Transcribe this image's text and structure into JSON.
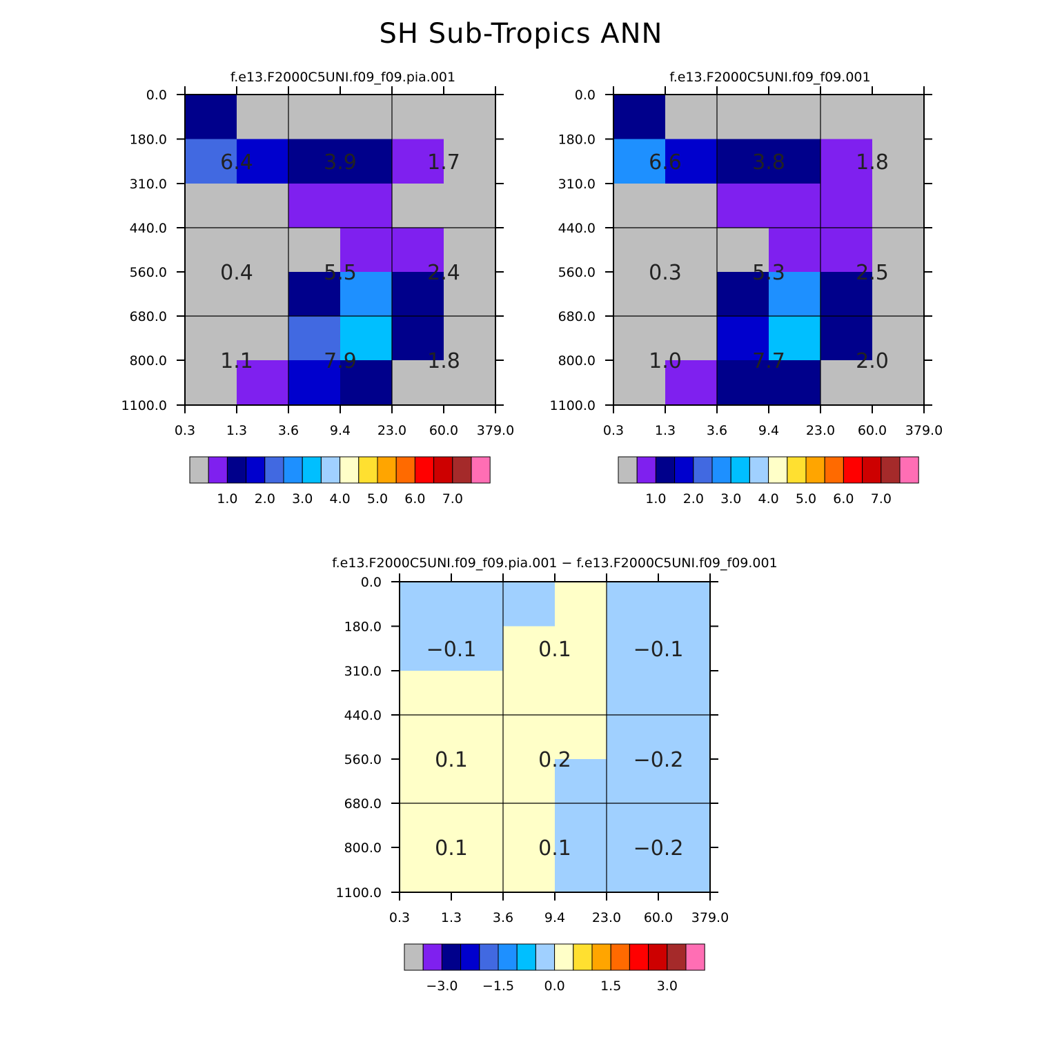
{
  "title": "SH Sub-Tropics ANN",
  "axes": {
    "x_ticks": [
      "0.3",
      "1.3",
      "3.6",
      "9.4",
      "23.0",
      "60.0",
      "379.0"
    ],
    "y_ticks": [
      "0.0",
      "180.0",
      "310.0",
      "440.0",
      "560.0",
      "680.0",
      "800.0",
      "1100.0"
    ]
  },
  "colors": {
    "no_data": "#bebebe",
    "palette": [
      "#bebebe",
      "#7f20ef",
      "#00008b",
      "#0000cd",
      "#4169e1",
      "#1e90ff",
      "#00bfff",
      "#a0d0ff",
      "#ffffc8",
      "#ffe030",
      "#ffa500",
      "#ff6a00",
      "#ff0000",
      "#cd0000",
      "#a52a2a",
      "#ff6eb4"
    ]
  },
  "chart_data": [
    {
      "type": "heatmap",
      "title": "f.e13.F2000C5UNI.f09_f09.pia.001",
      "x_edges": [
        "0.3",
        "1.3",
        "3.6",
        "9.4",
        "23.0",
        "60.0",
        "379.0"
      ],
      "y_edges": [
        "0.0",
        "180.0",
        "310.0",
        "440.0",
        "560.0",
        "680.0",
        "800.0",
        "1100.0"
      ],
      "cells": [
        [
          2,
          0,
          0,
          0,
          0,
          0
        ],
        [
          4,
          3,
          2,
          2,
          1,
          0
        ],
        [
          0,
          0,
          1,
          1,
          0,
          0
        ],
        [
          0,
          0,
          0,
          1,
          1,
          0
        ],
        [
          0,
          0,
          2,
          5,
          2,
          0
        ],
        [
          0,
          0,
          4,
          6,
          2,
          0
        ],
        [
          0,
          1,
          3,
          2,
          0,
          0
        ]
      ],
      "annotations": [
        {
          "text": "6.4",
          "col": 1,
          "row": 1.5
        },
        {
          "text": "3.9",
          "col": 3,
          "row": 1.5
        },
        {
          "text": "1.7",
          "col": 5,
          "row": 1.5
        },
        {
          "text": "0.4",
          "col": 1,
          "row": 4
        },
        {
          "text": "5.5",
          "col": 3,
          "row": 4
        },
        {
          "text": "2.4",
          "col": 5,
          "row": 4
        },
        {
          "text": "1.1",
          "col": 1,
          "row": 6
        },
        {
          "text": "7.9",
          "col": 3,
          "row": 6
        },
        {
          "text": "1.8",
          "col": 5,
          "row": 6
        }
      ],
      "colorbar_labels": [
        "1.0",
        "2.0",
        "3.0",
        "4.0",
        "5.0",
        "6.0",
        "7.0"
      ]
    },
    {
      "type": "heatmap",
      "title": "f.e13.F2000C5UNI.f09_f09.001",
      "x_edges": [
        "0.3",
        "1.3",
        "3.6",
        "9.4",
        "23.0",
        "60.0",
        "379.0"
      ],
      "y_edges": [
        "0.0",
        "180.0",
        "310.0",
        "440.0",
        "560.0",
        "680.0",
        "800.0",
        "1100.0"
      ],
      "cells": [
        [
          2,
          0,
          0,
          0,
          0,
          0
        ],
        [
          5,
          3,
          2,
          2,
          1,
          0
        ],
        [
          0,
          0,
          1,
          1,
          1,
          0
        ],
        [
          0,
          0,
          0,
          1,
          1,
          0
        ],
        [
          0,
          0,
          2,
          5,
          2,
          0
        ],
        [
          0,
          0,
          3,
          6,
          2,
          0
        ],
        [
          0,
          1,
          2,
          2,
          0,
          0
        ]
      ],
      "annotations": [
        {
          "text": "6.6",
          "col": 1,
          "row": 1.5
        },
        {
          "text": "3.8",
          "col": 3,
          "row": 1.5
        },
        {
          "text": "1.8",
          "col": 5,
          "row": 1.5
        },
        {
          "text": "0.3",
          "col": 1,
          "row": 4
        },
        {
          "text": "5.3",
          "col": 3,
          "row": 4
        },
        {
          "text": "2.5",
          "col": 5,
          "row": 4
        },
        {
          "text": "1.0",
          "col": 1,
          "row": 6
        },
        {
          "text": "7.7",
          "col": 3,
          "row": 6
        },
        {
          "text": "2.0",
          "col": 5,
          "row": 6
        }
      ],
      "colorbar_labels": [
        "1.0",
        "2.0",
        "3.0",
        "4.0",
        "5.0",
        "6.0",
        "7.0"
      ]
    },
    {
      "type": "heatmap",
      "title": "f.e13.F2000C5UNI.f09_f09.pia.001 − f.e13.F2000C5UNI.f09_f09.001",
      "x_edges": [
        "0.3",
        "1.3",
        "3.6",
        "9.4",
        "23.0",
        "60.0",
        "379.0"
      ],
      "y_edges": [
        "0.0",
        "180.0",
        "310.0",
        "440.0",
        "560.0",
        "680.0",
        "800.0",
        "1100.0"
      ],
      "cells": [
        [
          7,
          7,
          7,
          8,
          7,
          7
        ],
        [
          7,
          7,
          8,
          8,
          7,
          7
        ],
        [
          8,
          8,
          8,
          8,
          7,
          7
        ],
        [
          8,
          8,
          8,
          8,
          7,
          7
        ],
        [
          8,
          8,
          8,
          7,
          7,
          7
        ],
        [
          8,
          8,
          8,
          7,
          7,
          7
        ],
        [
          8,
          8,
          8,
          7,
          7,
          7
        ]
      ],
      "annotations": [
        {
          "text": "−0.1",
          "col": 1,
          "row": 1.5
        },
        {
          "text": "0.1",
          "col": 3,
          "row": 1.5
        },
        {
          "text": "−0.1",
          "col": 5,
          "row": 1.5
        },
        {
          "text": "0.1",
          "col": 1,
          "row": 4
        },
        {
          "text": "0.2",
          "col": 3,
          "row": 4
        },
        {
          "text": "−0.2",
          "col": 5,
          "row": 4
        },
        {
          "text": "0.1",
          "col": 1,
          "row": 6
        },
        {
          "text": "0.1",
          "col": 3,
          "row": 6
        },
        {
          "text": "−0.2",
          "col": 5,
          "row": 6
        }
      ],
      "colorbar_labels": [
        "−3.0",
        "−1.5",
        "0.0",
        "1.5",
        "3.0"
      ]
    }
  ]
}
